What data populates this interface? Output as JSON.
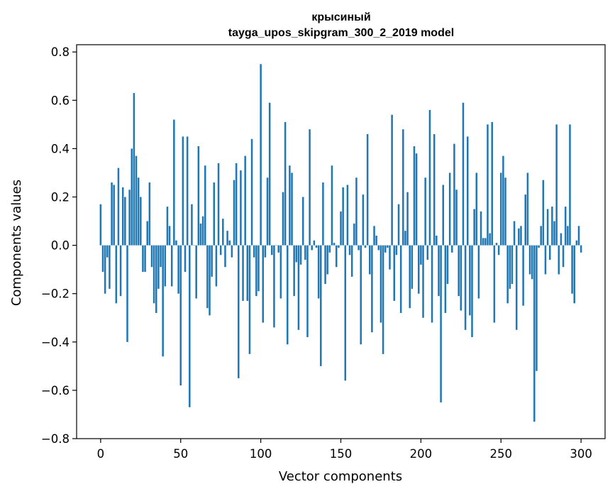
{
  "chart_data": {
    "type": "bar",
    "title": "крысиный",
    "subtitle": "tayga_upos_skipgram_300_2_2019 model",
    "xlabel": "Vector components",
    "ylabel": "Components values",
    "xlim": [
      -15,
      315
    ],
    "ylim": [
      -0.8,
      0.83
    ],
    "xticks": [
      0,
      50,
      100,
      150,
      200,
      250,
      300
    ],
    "yticks": [
      -0.8,
      -0.6,
      -0.4,
      -0.2,
      0.0,
      0.2,
      0.4,
      0.6,
      0.8
    ],
    "xtick_labels": [
      "0",
      "50",
      "100",
      "150",
      "200",
      "250",
      "300"
    ],
    "ytick_labels": [
      "−0.8",
      "−0.6",
      "−0.4",
      "−0.2",
      "0.0",
      "0.2",
      "0.4",
      "0.6",
      "0.8"
    ],
    "bar_color": "#1f77b4",
    "grid": false,
    "series": [
      {
        "values": [
          0.17,
          -0.11,
          -0.2,
          -0.05,
          -0.18,
          0.26,
          0.25,
          -0.24,
          0.32,
          -0.21,
          0.24,
          0.2,
          -0.4,
          0.23,
          0.4,
          0.63,
          0.37,
          0.28,
          0.2,
          -0.11,
          -0.11,
          0.1,
          0.26,
          -0.09,
          -0.24,
          -0.28,
          -0.18,
          -0.09,
          -0.46,
          -0.17,
          0.16,
          0.08,
          -0.17,
          0.52,
          0.02,
          -0.2,
          -0.58,
          0.45,
          -0.11,
          0.45,
          -0.67,
          0.17,
          0.0,
          -0.22,
          0.41,
          0.09,
          0.12,
          0.33,
          -0.26,
          -0.29,
          -0.13,
          0.26,
          -0.17,
          0.34,
          -0.04,
          0.11,
          -0.09,
          0.06,
          0.02,
          -0.05,
          0.27,
          0.34,
          -0.55,
          0.31,
          -0.23,
          0.37,
          -0.23,
          -0.45,
          0.44,
          -0.05,
          -0.21,
          -0.19,
          0.75,
          -0.32,
          -0.05,
          0.28,
          0.59,
          -0.04,
          -0.34,
          0.0,
          -0.03,
          -0.22,
          0.22,
          0.51,
          -0.41,
          0.33,
          0.3,
          -0.21,
          -0.07,
          -0.35,
          -0.08,
          0.2,
          -0.06,
          -0.38,
          0.48,
          -0.02,
          0.02,
          -0.01,
          -0.22,
          -0.5,
          0.26,
          -0.16,
          -0.12,
          -0.03,
          0.33,
          0.01,
          -0.09,
          -0.01,
          0.14,
          0.24,
          -0.56,
          0.25,
          -0.04,
          -0.13,
          0.09,
          0.28,
          -0.02,
          -0.41,
          0.21,
          -0.01,
          0.46,
          -0.12,
          -0.36,
          0.08,
          0.04,
          -0.02,
          -0.32,
          -0.45,
          -0.03,
          -0.01,
          -0.1,
          0.54,
          -0.23,
          -0.04,
          0.17,
          -0.28,
          0.48,
          0.06,
          0.22,
          -0.26,
          -0.18,
          0.41,
          0.38,
          -0.2,
          -0.08,
          -0.3,
          0.28,
          -0.06,
          0.56,
          -0.32,
          0.46,
          0.04,
          -0.21,
          -0.65,
          0.25,
          -0.28,
          -0.16,
          0.3,
          -0.03,
          0.42,
          0.23,
          -0.21,
          -0.27,
          0.59,
          -0.35,
          0.45,
          -0.29,
          -0.38,
          0.15,
          0.3,
          -0.22,
          0.14,
          0.03,
          0.03,
          0.5,
          0.05,
          0.51,
          -0.32,
          0.01,
          -0.04,
          0.3,
          0.37,
          0.28,
          -0.24,
          -0.18,
          -0.16,
          0.1,
          -0.35,
          0.07,
          0.08,
          -0.25,
          0.21,
          0.3,
          -0.12,
          -0.14,
          -0.73,
          -0.52,
          -0.01,
          0.08,
          0.27,
          -0.12,
          0.15,
          -0.06,
          0.16,
          0.1,
          0.5,
          -0.12,
          0.05,
          -0.09,
          0.16,
          0.08,
          0.5,
          -0.2,
          -0.24,
          0.02,
          0.08,
          -0.03
        ]
      }
    ]
  }
}
